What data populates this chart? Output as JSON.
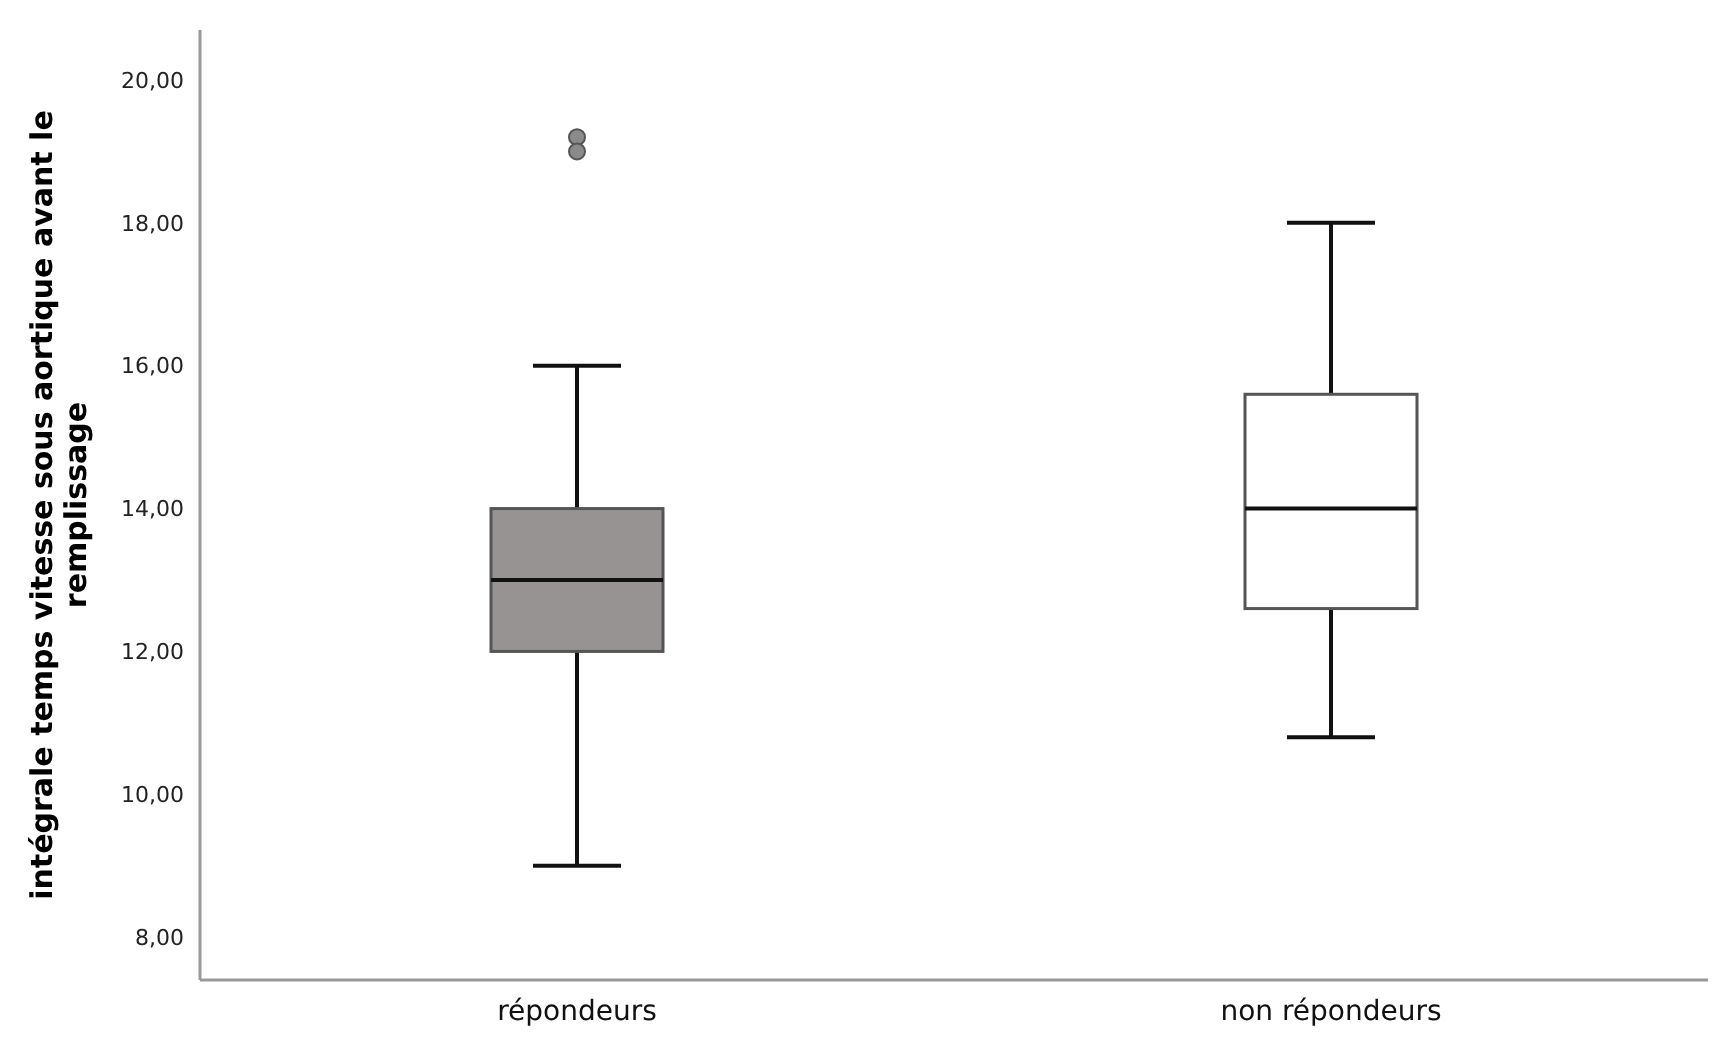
{
  "chart_data": {
    "type": "box",
    "ylabel": "intégrale temps vitesse sous aortique avant le remplissage",
    "categories": [
      "répondeurs",
      "non répondeurs"
    ],
    "boxes": [
      {
        "low": 9,
        "q1": 12,
        "median": 13,
        "q3": 14,
        "high": 16,
        "outliers": [
          19.2,
          19.0
        ]
      },
      {
        "low": 10.8,
        "q1": 12.6,
        "median": 14,
        "q3": 15.6,
        "high": 18
      }
    ],
    "colors": [
      "#979392",
      "#ffffff"
    ],
    "ylim": [
      7.4,
      20.7
    ],
    "yticks": [
      {
        "value": 8,
        "label": "8,00"
      },
      {
        "value": 10,
        "label": "10,00"
      },
      {
        "value": 12,
        "label": "12,00"
      },
      {
        "value": 14,
        "label": "14,00"
      },
      {
        "value": 16,
        "label": "16,00"
      },
      {
        "value": 18,
        "label": "18,00"
      },
      {
        "value": 20,
        "label": "20,00"
      }
    ],
    "grid": false
  }
}
